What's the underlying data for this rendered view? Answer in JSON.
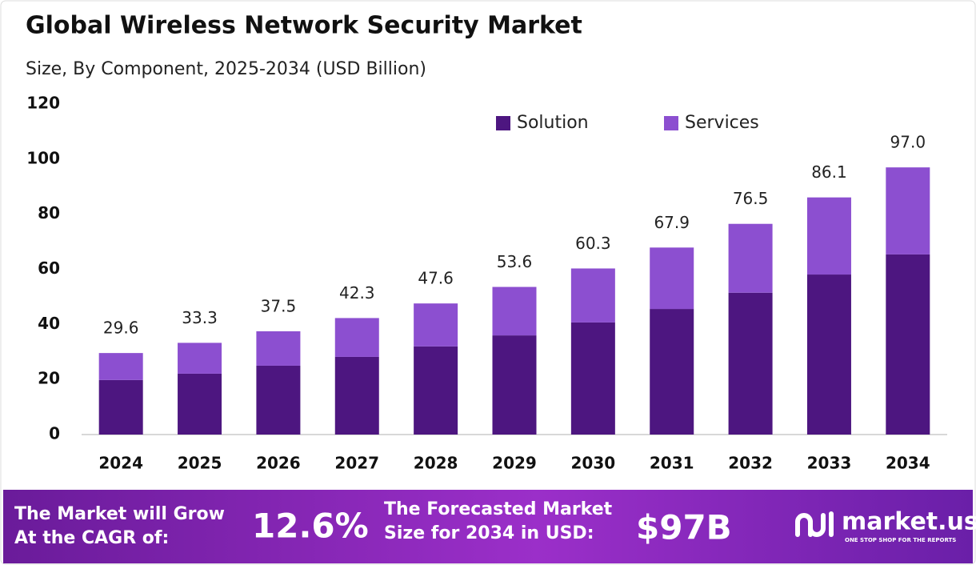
{
  "chart_data": {
    "type": "stacked-bar",
    "title": "Global Wireless Network Security Market",
    "subtitle": "Size, By Component, 2025-2034 (USD Billion)",
    "categories": [
      "2024",
      "2025",
      "2026",
      "2027",
      "2028",
      "2029",
      "2030",
      "2031",
      "2032",
      "2033",
      "2034"
    ],
    "series": [
      {
        "name": "Solution",
        "color": "#4d1680",
        "values": [
          19.8,
          22.1,
          25.0,
          28.2,
          32.0,
          36.0,
          40.7,
          45.6,
          51.5,
          58.1,
          65.4
        ]
      },
      {
        "name": "Services",
        "color": "#8c4fd0",
        "values": [
          9.8,
          11.2,
          12.5,
          14.1,
          15.6,
          17.6,
          19.6,
          22.3,
          25.0,
          28.0,
          31.6
        ]
      }
    ],
    "totals": {
      "values": [
        29.6,
        33.3,
        37.5,
        42.3,
        47.6,
        53.6,
        60.3,
        67.9,
        76.5,
        86.1,
        97.0
      ],
      "value_labels": [
        "29.6",
        "33.3",
        "37.5",
        "42.3",
        "47.6",
        "53.6",
        "60.3",
        "67.9",
        "76.5",
        "86.1",
        "97.0"
      ]
    },
    "ylim": [
      0,
      120
    ],
    "yticks": [
      0,
      20,
      40,
      60,
      80,
      100,
      120
    ],
    "grid": false,
    "legend": "top"
  },
  "footer": {
    "cagr_text": [
      "The Market will Grow",
      "At the CAGR of:"
    ],
    "cagr_value": "12.6%",
    "size_text": [
      "The Forecasted Market",
      "Size for 2034 in USD:"
    ],
    "size_value": "$97B",
    "brand": "market.us",
    "tagline": "ONE STOP SHOP FOR THE REPORTS"
  }
}
